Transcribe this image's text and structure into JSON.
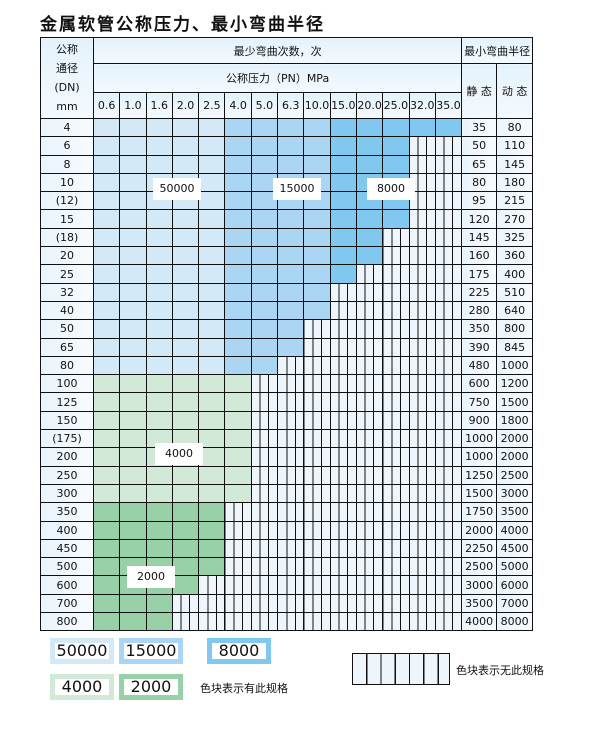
{
  "title": "金属软管公称压力、最小弯曲半径",
  "header": {
    "dn_label_lines": [
      "公称",
      "通径",
      "(DN)",
      "mm"
    ],
    "bending_cycles": "最少弯曲次数，次",
    "pressure": "公称压力（PN）MPa",
    "min_radius": "最小弯曲半径",
    "static": "静 态",
    "dynamic": "动 态",
    "pressures": [
      "0.6",
      "1.0",
      "1.6",
      "2.0",
      "2.5",
      "4.0",
      "5.0",
      "6.3",
      "10.0",
      "15.0",
      "20.0",
      "25.0",
      "32.0",
      "35.0"
    ]
  },
  "column_tiers_upper": [
    "50000",
    "50000",
    "50000",
    "50000",
    "50000",
    "15000",
    "15000",
    "15000",
    "15000",
    "8000",
    "8000",
    "8000",
    "8000",
    "8000"
  ],
  "rows": [
    {
      "dn": "4",
      "filled": 14,
      "tier": "upper",
      "static": "35",
      "dynamic": "80"
    },
    {
      "dn": "6",
      "filled": 12,
      "tier": "upper",
      "static": "50",
      "dynamic": "110"
    },
    {
      "dn": "8",
      "filled": 12,
      "tier": "upper",
      "static": "65",
      "dynamic": "145"
    },
    {
      "dn": "10",
      "filled": 12,
      "tier": "upper",
      "static": "80",
      "dynamic": "180"
    },
    {
      "dn": "(12)",
      "filled": 12,
      "tier": "upper",
      "static": "95",
      "dynamic": "215"
    },
    {
      "dn": "15",
      "filled": 12,
      "tier": "upper",
      "static": "120",
      "dynamic": "270"
    },
    {
      "dn": "(18)",
      "filled": 11,
      "tier": "upper",
      "static": "145",
      "dynamic": "325"
    },
    {
      "dn": "20",
      "filled": 11,
      "tier": "upper",
      "static": "160",
      "dynamic": "360"
    },
    {
      "dn": "25",
      "filled": 10,
      "tier": "upper",
      "static": "175",
      "dynamic": "400"
    },
    {
      "dn": "32",
      "filled": 9,
      "tier": "upper",
      "static": "225",
      "dynamic": "510"
    },
    {
      "dn": "40",
      "filled": 9,
      "tier": "upper",
      "static": "280",
      "dynamic": "640"
    },
    {
      "dn": "50",
      "filled": 8,
      "tier": "upper",
      "static": "350",
      "dynamic": "800"
    },
    {
      "dn": "65",
      "filled": 8,
      "tier": "upper",
      "static": "390",
      "dynamic": "845"
    },
    {
      "dn": "80",
      "filled": 7,
      "tier": "upper",
      "static": "480",
      "dynamic": "1000"
    },
    {
      "dn": "100",
      "filled": 6,
      "tier": "4000",
      "static": "600",
      "dynamic": "1200"
    },
    {
      "dn": "125",
      "filled": 6,
      "tier": "4000",
      "static": "750",
      "dynamic": "1500"
    },
    {
      "dn": "150",
      "filled": 6,
      "tier": "4000",
      "static": "900",
      "dynamic": "1800"
    },
    {
      "dn": "(175)",
      "filled": 6,
      "tier": "4000",
      "static": "1000",
      "dynamic": "2000"
    },
    {
      "dn": "200",
      "filled": 6,
      "tier": "4000",
      "static": "1000",
      "dynamic": "2000"
    },
    {
      "dn": "250",
      "filled": 6,
      "tier": "4000",
      "static": "1250",
      "dynamic": "2500"
    },
    {
      "dn": "300",
      "filled": 6,
      "tier": "4000",
      "static": "1500",
      "dynamic": "3000"
    },
    {
      "dn": "350",
      "filled": 5,
      "tier": "2000",
      "static": "1750",
      "dynamic": "3500"
    },
    {
      "dn": "400",
      "filled": 5,
      "tier": "2000",
      "static": "2000",
      "dynamic": "4000"
    },
    {
      "dn": "450",
      "filled": 5,
      "tier": "2000",
      "static": "2250",
      "dynamic": "4500"
    },
    {
      "dn": "500",
      "filled": 5,
      "tier": "2000",
      "static": "2500",
      "dynamic": "5000"
    },
    {
      "dn": "600",
      "filled": 4,
      "tier": "2000",
      "static": "3000",
      "dynamic": "6000"
    },
    {
      "dn": "700",
      "filled": 3,
      "tier": "2000",
      "static": "3500",
      "dynamic": "7000"
    },
    {
      "dn": "800",
      "filled": 3,
      "tier": "2000",
      "static": "4000",
      "dynamic": "8000"
    }
  ],
  "region_labels": {
    "a": "50000",
    "b": "15000",
    "c": "8000",
    "d": "4000",
    "e": "2000"
  },
  "legend": {
    "items": [
      "50000",
      "15000",
      "8000",
      "4000",
      "2000"
    ],
    "available_text": "色块表示有此规格",
    "unavailable_text": "色块表示无此规格"
  },
  "colors": {
    "t50000": "#d3e9f8",
    "t15000": "#aad6f3",
    "t8000": "#80c8ef",
    "t4000": "#d1e9d6",
    "t2000": "#98d0a8"
  }
}
